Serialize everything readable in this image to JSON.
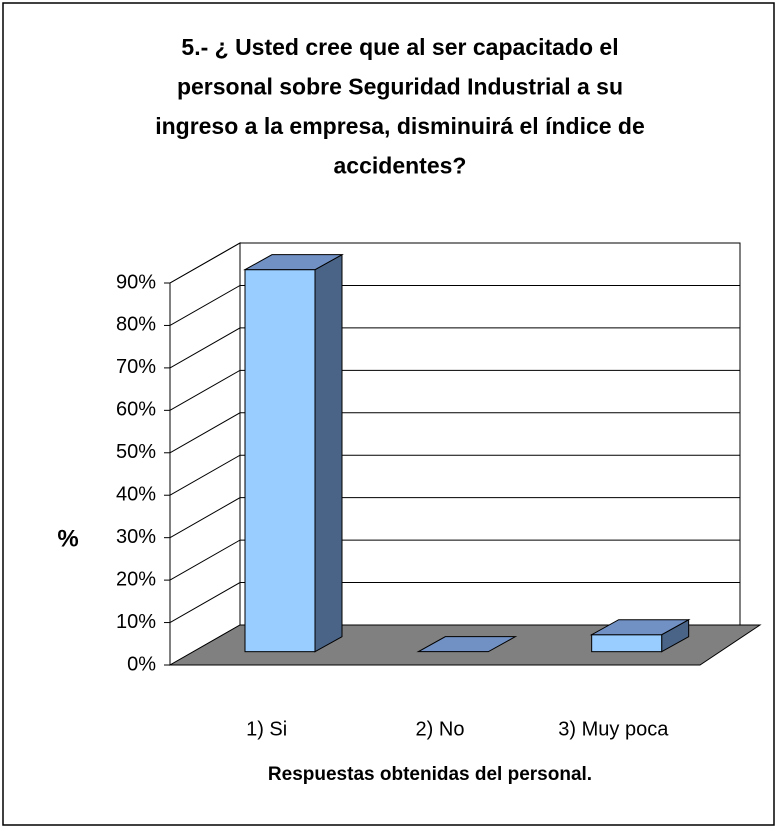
{
  "chart_data": {
    "type": "bar3d",
    "title": [
      "5.- ¿ Usted cree que al ser capacitado el",
      "personal sobre Seguridad Industrial a su",
      "ingreso a la empresa, disminuirá el índice de",
      "accidentes?"
    ],
    "xlabel": "Respuestas obtenidas del personal.",
    "ylabel": "%",
    "categories": [
      "1) Si",
      "2) No",
      "3) Muy poca"
    ],
    "values": [
      90,
      0,
      4
    ],
    "color": "#99ccff",
    "ylim": [
      0,
      90
    ],
    "yticks": [
      {
        "value": 0,
        "label": "0%"
      },
      {
        "value": 10,
        "label": "10%"
      },
      {
        "value": 20,
        "label": "20%"
      },
      {
        "value": 30,
        "label": "30%"
      },
      {
        "value": 40,
        "label": "40%"
      },
      {
        "value": 50,
        "label": "50%"
      },
      {
        "value": 60,
        "label": "60%"
      },
      {
        "value": 70,
        "label": "70%"
      },
      {
        "value": 80,
        "label": "80%"
      },
      {
        "value": 90,
        "label": "90%"
      }
    ],
    "grid": true
  }
}
